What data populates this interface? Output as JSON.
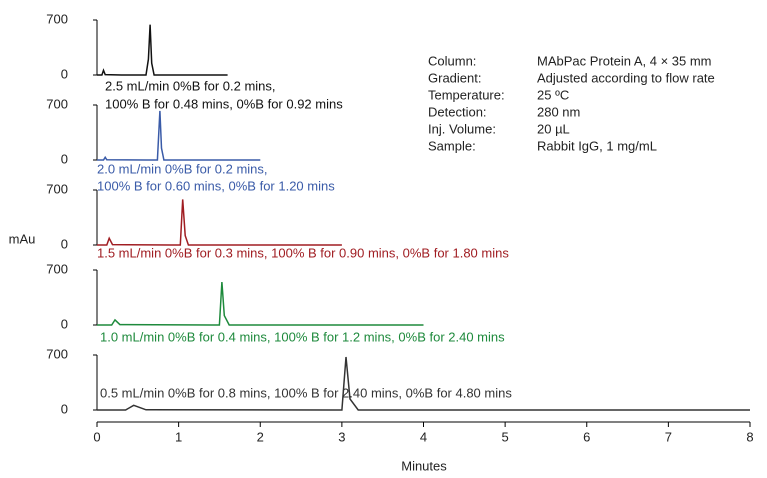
{
  "chart_data": {
    "type": "line",
    "ylabel": "mAu",
    "xlabel": "Minutes",
    "xlim": [
      0,
      8
    ],
    "xticks": [
      0,
      1,
      2,
      3,
      4,
      5,
      6,
      7,
      8
    ],
    "ylim": [
      0,
      700
    ],
    "yticks": [
      0,
      700
    ],
    "series": [
      {
        "label": [
          "2.5 mL/min 0%B for 0.2 mins,",
          "100% B for 0.48 mins, 0%B for 0.92 mins"
        ],
        "color": "#111111",
        "x": [
          0,
          0.06,
          0.08,
          0.1,
          0.3,
          0.6,
          0.63,
          0.65,
          0.67,
          0.7,
          1.0,
          1.6
        ],
        "values": [
          0,
          0,
          60,
          5,
          0,
          0,
          200,
          640,
          150,
          0,
          0,
          0
        ]
      },
      {
        "label": [
          "2.0 mL/min 0%B for 0.2 mins,",
          "100% B for 0.60 mins, 0%B for 1.20 mins"
        ],
        "color": "#3a5ba8",
        "x": [
          0,
          0.08,
          0.1,
          0.12,
          0.6,
          0.74,
          0.77,
          0.79,
          0.82,
          1.0,
          2.0
        ],
        "values": [
          0,
          0,
          35,
          3,
          0,
          0,
          625,
          150,
          0,
          0,
          0
        ]
      },
      {
        "label": [
          "1.5 mL/min 0%B for 0.3 mins, 100% B for 0.90 mins, 0%B for 1.80 mins"
        ],
        "color": "#a01d22",
        "x": [
          0,
          0.12,
          0.15,
          0.19,
          0.9,
          1.02,
          1.05,
          1.08,
          1.12,
          1.5,
          3.0
        ],
        "values": [
          0,
          0,
          85,
          5,
          0,
          0,
          580,
          120,
          0,
          0,
          0
        ]
      },
      {
        "label": [
          "1.0 mL/min 0%B for 0.4 mins, 100% B for 1.2 mins, 0%B for 2.40 mins"
        ],
        "color": "#1e8a3c",
        "x": [
          0,
          0.18,
          0.22,
          0.28,
          1.4,
          1.5,
          1.53,
          1.56,
          1.62,
          2.0,
          4.0
        ],
        "values": [
          0,
          0,
          65,
          5,
          0,
          0,
          547,
          120,
          0,
          0,
          0
        ]
      },
      {
        "label": [
          "0.5 mL/min 0%B for 0.8 mins, 100% B for 2.40 mins, 0%B for 4.80 mins"
        ],
        "color": "#333333",
        "x": [
          0,
          0.35,
          0.45,
          0.6,
          2.9,
          3.0,
          3.05,
          3.1,
          3.2,
          5.0,
          8.0
        ],
        "values": [
          0,
          0,
          60,
          3,
          0,
          0,
          675,
          140,
          0,
          0,
          0
        ]
      }
    ],
    "info": [
      [
        "Column:",
        "MAbPac Protein A, 4 × 35 mm"
      ],
      [
        "Gradient:",
        "Adjusted according to flow rate"
      ],
      [
        "Temperature:",
        "25 ºC"
      ],
      [
        "Detection:",
        "280 nm"
      ],
      [
        "Inj. Volume:",
        "20 µL"
      ],
      [
        "Sample:",
        "Rabbit IgG, 1 mg/mL"
      ]
    ]
  }
}
